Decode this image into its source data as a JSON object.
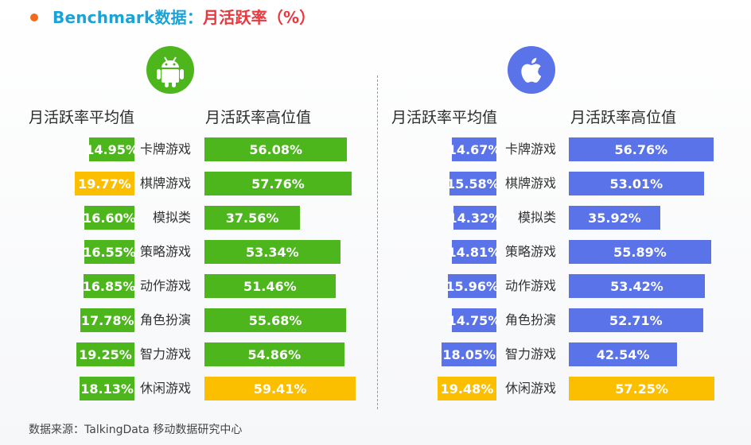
{
  "title": {
    "part1": "Benchmark数据：",
    "part2": "月活跃率（%）"
  },
  "colors": {
    "android": "#4cb61c",
    "ios": "#5a73e8",
    "highlight": "#fcbf00"
  },
  "headers": {
    "avg": "月活跃率平均值",
    "high": "月活跃率高位值"
  },
  "categories": [
    "卡牌游戏",
    "棋牌游戏",
    "模拟类",
    "策略游戏",
    "动作游戏",
    "角色扮演",
    "智力游戏",
    "休闲游戏"
  ],
  "chart_data": [
    {
      "type": "bar",
      "platform": "Android",
      "categories": [
        "卡牌游戏",
        "棋牌游戏",
        "模拟类",
        "策略游戏",
        "动作游戏",
        "角色扮演",
        "智力游戏",
        "休闲游戏"
      ],
      "series": [
        {
          "name": "月活跃率平均值",
          "values": [
            14.95,
            19.77,
            16.6,
            16.55,
            16.85,
            17.78,
            19.25,
            18.13
          ],
          "labels": [
            "14.95%",
            "19.77%",
            "16.60%",
            "16.55%",
            "16.85%",
            "17.78%",
            "19.25%",
            "18.13%"
          ],
          "highlight_index": 1
        },
        {
          "name": "月活跃率高位值",
          "values": [
            56.08,
            57.76,
            37.56,
            53.34,
            51.46,
            55.68,
            54.86,
            59.41
          ],
          "labels": [
            "56.08%",
            "57.76%",
            "37.56%",
            "53.34%",
            "51.46%",
            "55.68%",
            "54.86%",
            "59.41%"
          ],
          "highlight_index": 7
        }
      ]
    },
    {
      "type": "bar",
      "platform": "iOS",
      "categories": [
        "卡牌游戏",
        "棋牌游戏",
        "模拟类",
        "策略游戏",
        "动作游戏",
        "角色扮演",
        "智力游戏",
        "休闲游戏"
      ],
      "series": [
        {
          "name": "月活跃率平均值",
          "values": [
            14.67,
            15.58,
            14.32,
            14.81,
            15.96,
            14.75,
            18.05,
            19.48
          ],
          "labels": [
            "14.67%",
            "15.58%",
            "14.32%",
            "14.81%",
            "15.96%",
            "14.75%",
            "18.05%",
            "19.48%"
          ],
          "highlight_index": 7
        },
        {
          "name": "月活跃率高位值",
          "values": [
            56.76,
            53.01,
            35.92,
            55.89,
            53.42,
            52.71,
            42.54,
            57.25
          ],
          "labels": [
            "56.76%",
            "53.01%",
            "35.92%",
            "55.89%",
            "53.42%",
            "52.71%",
            "42.54%",
            "57.25%"
          ],
          "highlight_index": 7
        }
      ]
    }
  ],
  "footer": "数据来源：TalkingData 移动数据研究中心"
}
